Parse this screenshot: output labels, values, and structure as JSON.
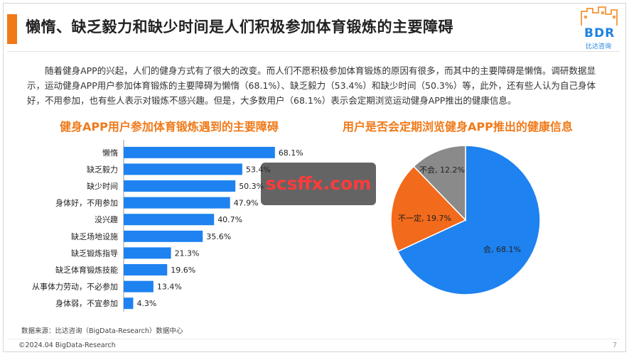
{
  "header": {
    "title": "懒惰、缺乏毅力和缺少时间是人们积极参加体育锻炼的主要障碍",
    "logo_text": "BDR",
    "logo_sub": "比达咨询"
  },
  "intro": "随着健身APP的兴起，人们的健身方式有了很大的改变。而人们不愿积极参加体育锻炼的原因有很多，而其中的主要障碍是懒惰。调研数据显示，运动健身APP用户参加体育锻炼的主要障碍为懒惰（68.1%）、缺乏毅力（53.4%）和缺少时间（50.3%）等，此外，还有些人认为自己身体好，不用参加，也有些人表示对锻炼不感兴趣。但是，大多数用户（68.1%）表示会定期浏览运动健身APP推出的健康信息。",
  "watermark": "scsffx.com",
  "colors": {
    "accent": "#f07a1a",
    "bar": "#1e82f0",
    "pie_yes": "#1e82f0",
    "pie_maybe": "#f26a1b",
    "pie_no": "#8a8a8a"
  },
  "chart_data": [
    {
      "type": "bar",
      "orientation": "horizontal",
      "title": "健身APP用户参加体育锻炼遇到的主要障碍",
      "categories": [
        "懒惰",
        "缺乏毅力",
        "缺少时间",
        "身体好，不用参加",
        "没兴趣",
        "缺乏场地设施",
        "缺乏锻炼指导",
        "缺乏体育锻炼技能",
        "从事体力劳动，不必参加",
        "身体弱，不宜参加"
      ],
      "values": [
        68.1,
        53.4,
        50.3,
        47.9,
        40.7,
        35.6,
        21.3,
        19.6,
        13.4,
        4.3
      ],
      "value_labels": [
        "68.1%",
        "53.4%",
        "50.3%",
        "47.9%",
        "40.7%",
        "35.6%",
        "21.3%",
        "19.6%",
        "13.4%",
        "4.3%"
      ],
      "xlim": [
        0,
        100
      ],
      "grid": false,
      "legend": "none"
    },
    {
      "type": "pie",
      "title": "用户是否会定期浏览健身APP推出的健康信息",
      "labels": [
        "会",
        "不一定",
        "不会"
      ],
      "values": [
        68.1,
        19.7,
        12.2
      ],
      "slice_labels": [
        "会, 68.1%",
        "不一定, 19.7%",
        "不会, 12.2%"
      ],
      "legend": "none"
    }
  ],
  "footer": {
    "source": "数据来源：比达咨询（BigData-Research）数据中心",
    "copyright": "©2024.04 BigData-Research",
    "page": "7"
  }
}
